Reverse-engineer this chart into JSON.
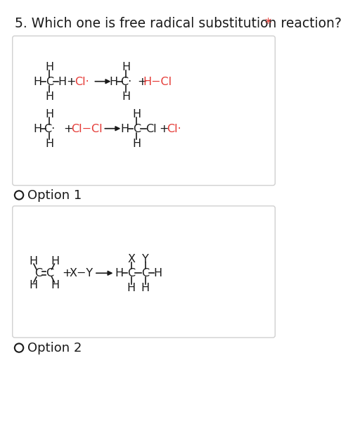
{
  "title": "5. Which one is free radical substitution reaction?",
  "bg_color": "#ffffff",
  "box_border": "#d0d0d0",
  "text_color": "#1a1a1a",
  "red_color": "#e53935",
  "option1_label": "Option 1",
  "option2_label": "Option 2",
  "title_fs": 13.5,
  "chem_fs": 11.5,
  "opt_fs": 13
}
